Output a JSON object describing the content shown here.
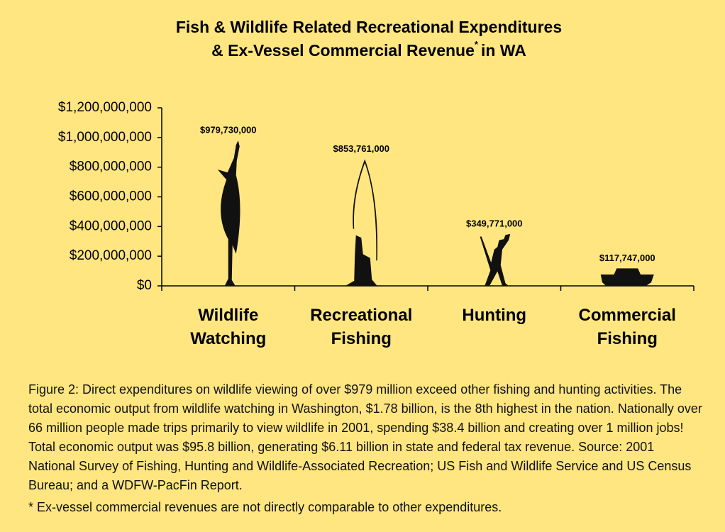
{
  "chart_data": {
    "type": "bar",
    "title": [
      "Fish & Wildlife Related Recreational Expenditures",
      "& Ex-Vessel Commercial Revenue"
    ],
    "title_suffix": "in WA",
    "title_mark": "*",
    "categories": [
      "Wildlife Watching",
      "Recreational Fishing",
      "Hunting",
      "Commercial Fishing"
    ],
    "values": [
      979730000,
      853761000,
      349771000,
      117747000
    ],
    "value_labels": [
      "$979,730,000",
      "$853,761,000",
      "$349,771,000",
      "$117,747,000"
    ],
    "color": "#111111",
    "ylim": [
      0,
      1200000000
    ],
    "yticks": [
      {
        "value": 0,
        "label": "$0"
      },
      {
        "value": 200000000,
        "label": "$200,000,000"
      },
      {
        "value": 400000000,
        "label": "$400,000,000"
      },
      {
        "value": 600000000,
        "label": "$600,000,000"
      },
      {
        "value": 800000000,
        "label": "$800,000,000"
      },
      {
        "value": 1000000000,
        "label": "$1,000,000,000"
      },
      {
        "value": 1200000000,
        "label": "$1,200,000,000"
      }
    ],
    "caption": "Figure 2: Direct expenditures on wildlife viewing of over $979 million exceed other fishing and hunting activities. The total economic output from wildlife watching in Washington, $1.78 billion, is the 8th highest in the nation. Nationally over 66 million people made trips primarily to view wildlife in 2001, spending $38.4 billion and creating over 1 million jobs! Total economic output was $95.8 billion, generating $6.11 billion in state and federal tax revenue. Source: 2001 National Survey of Fishing, Hunting and Wildlife-Associated Recreation; US Fish and Wildlife Service and US Census Bureau; and a WDFW-PacFin Report.",
    "footnote": "* Ex-vessel commercial revenues are not directly comparable to other expenditures."
  }
}
